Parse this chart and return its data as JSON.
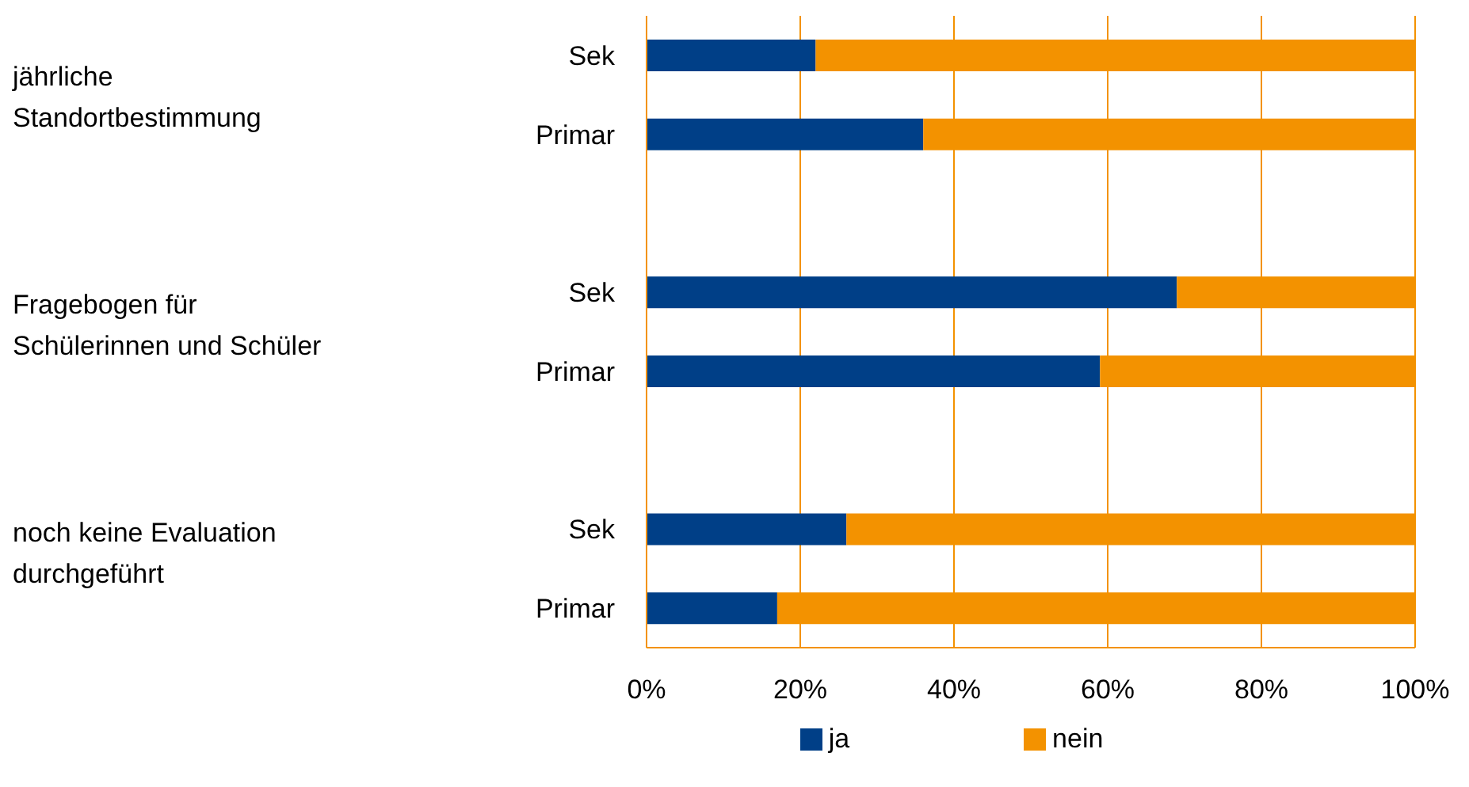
{
  "chart_data": {
    "type": "bar",
    "orientation": "horizontal",
    "stacked": true,
    "categories": [
      "Sek",
      "Primar",
      null,
      "Sek",
      "Primar",
      null,
      "Sek",
      "Primar"
    ],
    "series": [
      {
        "name": "ja",
        "color": "#003f87",
        "values": [
          22,
          36,
          null,
          69,
          59,
          null,
          26,
          17
        ]
      },
      {
        "name": "nein",
        "color": "#f39200",
        "values": [
          78,
          64,
          null,
          31,
          41,
          null,
          74,
          83
        ]
      }
    ],
    "xlim": [
      0,
      100
    ],
    "xticks": [
      {
        "value": 0,
        "label": "0%"
      },
      {
        "value": 20,
        "label": "20%"
      },
      {
        "value": 40,
        "label": "40%"
      },
      {
        "value": 60,
        "label": "60%"
      },
      {
        "value": 80,
        "label": "80%"
      },
      {
        "value": 100,
        "label": "100%"
      }
    ],
    "annotations": [
      "jährliche\nStandortbestimmung",
      "Fragebogen für\nSchülerinnen und Schüler",
      "noch keine Evaluation\ndurchgeführt"
    ],
    "grid": "x",
    "legend": "bottom"
  }
}
